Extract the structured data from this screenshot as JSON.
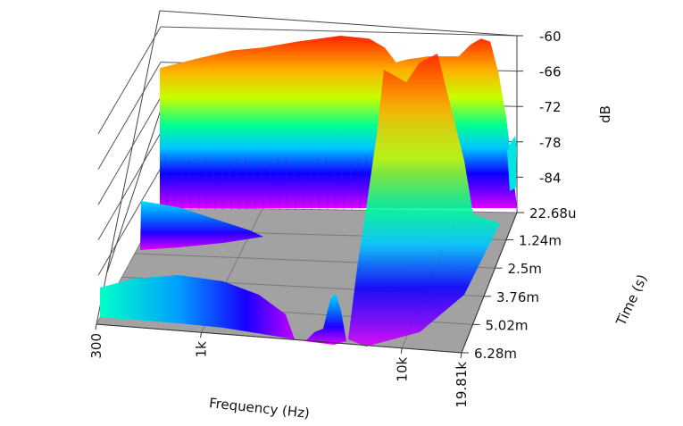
{
  "chart_data": {
    "type": "surface-3d-waterfall",
    "title": "",
    "xlabel": "Frequency (Hz)",
    "ylabel": "Time (s)",
    "zlabel": "dB",
    "x_ticks": [
      "300",
      "1k",
      "10k",
      "19.81k"
    ],
    "x_tick_values": [
      300,
      1000,
      10000,
      19810
    ],
    "xlim": [
      300,
      19810
    ],
    "x_scale": "log",
    "y_ticks": [
      "22.68u",
      "1.24m",
      "2.5m",
      "3.76m",
      "5.02m",
      "6.28m"
    ],
    "y_tick_values": [
      2.268e-05,
      0.00124,
      0.0025,
      0.00376,
      0.00502,
      0.00628
    ],
    "ylim": [
      2.268e-05,
      0.00628
    ],
    "z_ticks": [
      "-60",
      "-66",
      "-72",
      "-78",
      "-84"
    ],
    "z_tick_values": [
      -60,
      -66,
      -72,
      -78,
      -84
    ],
    "zlim": [
      -90,
      -60
    ],
    "floor_color": "#a2a2a2",
    "colormap": [
      "#e000ff",
      "#0000ff",
      "#00ffff",
      "#00ff00",
      "#ffff00",
      "#ff0000"
    ],
    "first_slice": {
      "time": 2.268e-05,
      "freq": [
        300,
        450,
        700,
        1000,
        1500,
        2500,
        3500,
        4200,
        4800,
        5500,
        7000,
        8500,
        10000,
        11500,
        13000,
        14500,
        16000,
        17500,
        19000,
        19810
      ],
      "db": [
        -65.5,
        -64,
        -62.5,
        -62,
        -61,
        -60,
        -60.5,
        -62,
        -64.5,
        -64,
        -63.5,
        -63.5,
        -63.5,
        -61.5,
        -60.5,
        -61,
        -66.5,
        -74,
        -84,
        -89
      ]
    },
    "late_ridges": [
      {
        "label": "low",
        "time_range": [
          0.0009,
          0.0019
        ],
        "freq_range": [
          300,
          1200
        ],
        "db_peak": -86
      },
      {
        "label": "low",
        "time_range": [
          0.0038,
          0.0063
        ],
        "freq_range": [
          300,
          2200
        ],
        "db_peak": -85
      },
      {
        "label": "mid",
        "time_range": [
          0.0052,
          0.0063
        ],
        "freq_range": [
          3600,
          4200
        ],
        "db_peak": -86
      }
    ]
  }
}
